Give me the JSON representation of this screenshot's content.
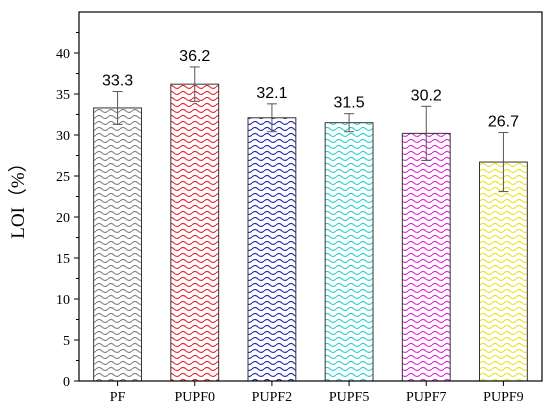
{
  "chart_data": {
    "type": "bar",
    "title": "",
    "xlabel": "",
    "ylabel": "LOI（%）",
    "ylim": [
      0,
      45
    ],
    "yticks": [
      0,
      5,
      10,
      15,
      20,
      25,
      30,
      35,
      40
    ],
    "categories": [
      "PF",
      "PUPF0",
      "PUPF2",
      "PUPF5",
      "PUPF7",
      "PUPF9"
    ],
    "values": [
      33.3,
      36.2,
      32.1,
      31.5,
      30.2,
      26.7
    ],
    "value_labels": [
      "33.3",
      "36.2",
      "32.1",
      "31.5",
      "30.2",
      "26.7"
    ],
    "errors": [
      2.0,
      2.1,
      1.7,
      1.1,
      3.3,
      3.6
    ],
    "colors": [
      "#808080",
      "#e8202a",
      "#1c22b0",
      "#22cfd0",
      "#e21fd9",
      "#e6e61c"
    ],
    "grid": false,
    "legend": false
  }
}
